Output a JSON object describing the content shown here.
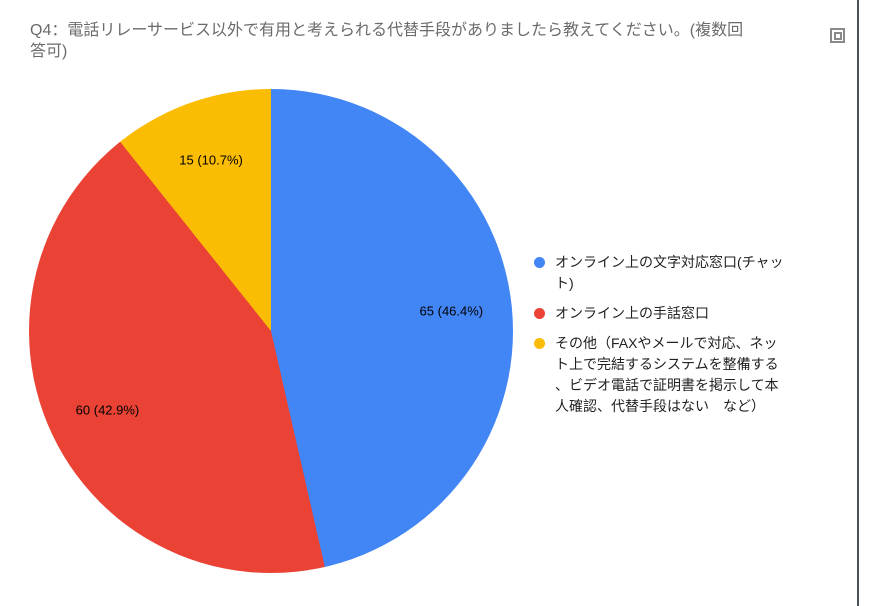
{
  "title": {
    "text": "Q4：電話リレーサービス以外で有用と考えられる代替手段がありましたら教えてください。(複数回答可)",
    "lines": [
      "Q4：電話リレーサービス以外で有用と考えられる代替手段がありましたら教えてください。(複数回",
      "答可)"
    ]
  },
  "chart_data": {
    "type": "pie",
    "title": "Q4：電話リレーサービス以外で有用と考えられる代替手段がありましたら教えてください。(複数回答可)",
    "categories": [
      "オンライン上の文字対応窓口(チャット)",
      "オンライン上の手話窓口",
      "その他（FAXやメールで対応、ネット上で完結するシステムを整備する、ビデオ電話で証明書を掲示して本人確認、代替手段はない　など）"
    ],
    "values": [
      65,
      60,
      15
    ],
    "percentages": [
      46.4,
      42.9,
      10.7
    ],
    "slice_labels": [
      "65 (46.4%)",
      "60 (42.9%)",
      "15 (10.7%)"
    ],
    "colors": [
      "#4285f4",
      "#ea4335",
      "#fbbc04"
    ],
    "start_angle_deg": 0,
    "direction": "clockwise",
    "legend_position": "right",
    "legend_lines": [
      [
        "オンライン上の文字対応窓口(チャッ",
        "ト)"
      ],
      [
        "オンライン上の手話窓口"
      ],
      [
        "その他（FAXやメールで対応、ネッ",
        "ト上で完結するシステムを整備する",
        "、ビデオ電話で証明書を掲示して本",
        "人確認、代替手段はない　など）"
      ]
    ]
  },
  "decorations": {
    "right_border_color": "#46525a",
    "anchor_icon_color": "#8a8a8a"
  }
}
